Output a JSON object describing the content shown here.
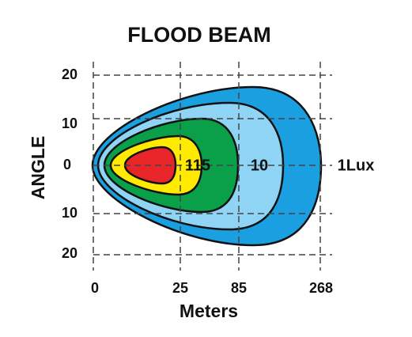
{
  "title": "FLOOD  BEAM",
  "y_axis": {
    "label": "ANGLE",
    "ticks": [
      "20",
      "10",
      "0",
      "10",
      "20"
    ]
  },
  "x_axis": {
    "label": "Meters",
    "ticks": [
      "0",
      "25",
      "85",
      "268"
    ]
  },
  "contour_labels": [
    "115",
    "10",
    "1Lux"
  ]
}
